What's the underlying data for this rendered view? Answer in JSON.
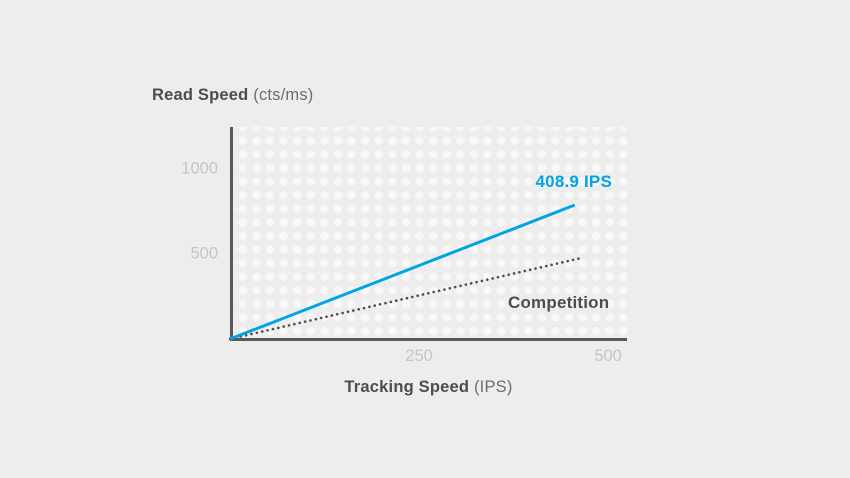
{
  "page": {
    "background_color": "#ededed"
  },
  "chart_data": {
    "type": "line",
    "title": "",
    "ylabel": "Read Speed",
    "ylabel_unit": "(cts/ms)",
    "xlabel": "Tracking Speed",
    "xlabel_unit": "(IPS)",
    "xlim": [
      0,
      525
    ],
    "ylim": [
      0,
      1250
    ],
    "x_ticks": [
      250,
      500
    ],
    "y_ticks": [
      500,
      1000
    ],
    "grid": "white-dot-pattern",
    "legend_position": "inline-labels-on-lines",
    "axis_color": "#58585b",
    "tick_label_color": "#c5c5c8",
    "series": [
      {
        "name": "408.9 IPS",
        "color": "#00a4e4",
        "line_style": "solid",
        "points": [
          [
            0,
            0
          ],
          [
            456,
            790
          ]
        ]
      },
      {
        "name": "Competition",
        "color": "#4d4d4f",
        "line_style": "dotted",
        "points": [
          [
            0,
            0
          ],
          [
            467,
            480
          ]
        ]
      }
    ]
  }
}
